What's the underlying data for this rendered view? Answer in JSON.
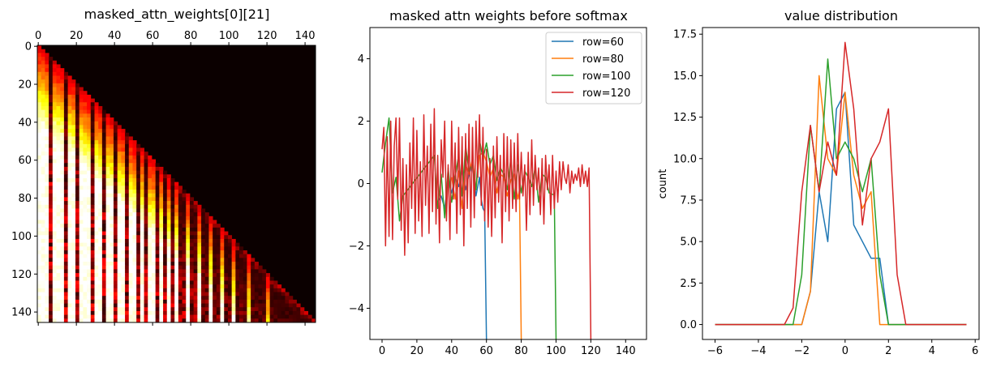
{
  "chart_data": [
    {
      "type": "heatmap",
      "title": "masked_attn_weights[0][21]",
      "x_ticks": [
        0,
        20,
        40,
        60,
        80,
        100,
        120,
        140
      ],
      "y_ticks": [
        0,
        20,
        40,
        60,
        80,
        100,
        120,
        140
      ],
      "xlim": [
        -0.5,
        145.5
      ],
      "ylim": [
        145.5,
        -0.5
      ],
      "size": 146,
      "colormap": "hot",
      "masked": "upper triangle (above diagonal) is zero",
      "hot_columns": [
        0,
        2,
        3,
        5,
        8,
        11,
        13,
        16,
        19,
        22,
        24,
        27,
        30,
        33,
        36,
        39,
        42,
        45,
        48,
        51,
        55,
        58,
        61,
        64,
        69,
        73,
        78,
        84,
        90,
        96,
        103,
        111,
        120
      ]
    },
    {
      "type": "line",
      "title": "masked attn weights before softmax",
      "xlim": [
        -7,
        152
      ],
      "ylim": [
        -5,
        5
      ],
      "x_ticks": [
        0,
        20,
        40,
        60,
        80,
        100,
        120,
        140
      ],
      "y_ticks": [
        -4,
        -2,
        0,
        2,
        4
      ],
      "legend_position": "top-right",
      "series": [
        {
          "name": "row=60",
          "color": "#1f77b4",
          "x": [
            32,
            34,
            36,
            38,
            40,
            42,
            44,
            46,
            48,
            50,
            52,
            54,
            56,
            57,
            58,
            59,
            60
          ],
          "y": [
            -0.6,
            -0.4,
            -0.8,
            0.1,
            -0.3,
            0.2,
            -0.1,
            0.4,
            -0.2,
            0.3,
            0.6,
            -0.4,
            0.2,
            -0.5,
            -0.8,
            -0.9,
            -5
          ]
        },
        {
          "name": "row=80",
          "color": "#ff7f0e",
          "x": [
            40,
            42,
            44,
            46,
            48,
            50,
            52,
            54,
            56,
            58,
            60,
            62,
            64,
            66,
            68,
            70,
            72,
            74,
            76,
            78,
            79,
            80
          ],
          "y": [
            0.2,
            -0.5,
            0.4,
            -0.8,
            0.6,
            0.3,
            0.8,
            -0.2,
            0.9,
            1.0,
            0.7,
            0.2,
            0.5,
            -0.3,
            0.3,
            0.2,
            -0.4,
            0.1,
            0.3,
            -0.5,
            -0.2,
            -5
          ]
        },
        {
          "name": "row=100",
          "color": "#2ca02c",
          "x": [
            0,
            2,
            4,
            6,
            8,
            10,
            12,
            30,
            32,
            34,
            36,
            38,
            40,
            42,
            44,
            46,
            48,
            50,
            52,
            54,
            56,
            58,
            60,
            62,
            64,
            66,
            68,
            70,
            72,
            74,
            76,
            78,
            80,
            82,
            84,
            86,
            88,
            90,
            92,
            94,
            96,
            98,
            99,
            100
          ],
          "y": [
            0.35,
            1.3,
            2.1,
            -0.3,
            0.2,
            -1.2,
            -0.4,
            0.9,
            -0.8,
            0.3,
            -1.1,
            0.5,
            -0.6,
            0.2,
            0.9,
            -0.4,
            1.2,
            0.4,
            0.6,
            -0.2,
            1.4,
            0.8,
            1.3,
            0.6,
            0.9,
            0.1,
            0.5,
            0.3,
            -0.2,
            0.8,
            -0.5,
            0.6,
            -0.3,
            0.4,
            0.2,
            -0.1,
            0.5,
            -0.6,
            0.3,
            0.2,
            -0.3,
            -0.35,
            -0.35,
            -5
          ]
        },
        {
          "name": "row=120",
          "color": "#d62728",
          "x": [
            0,
            1,
            2,
            3,
            4,
            5,
            6,
            7,
            8,
            9,
            10,
            11,
            12,
            13,
            14,
            15,
            16,
            17,
            18,
            19,
            20,
            21,
            22,
            23,
            24,
            25,
            26,
            27,
            28,
            29,
            30,
            31,
            32,
            33,
            34,
            35,
            36,
            37,
            38,
            39,
            40,
            41,
            42,
            43,
            44,
            45,
            46,
            47,
            48,
            49,
            50,
            51,
            52,
            53,
            54,
            55,
            56,
            57,
            58,
            59,
            60,
            61,
            62,
            63,
            64,
            65,
            66,
            67,
            68,
            69,
            70,
            71,
            72,
            73,
            74,
            75,
            76,
            77,
            78,
            79,
            80,
            81,
            82,
            83,
            84,
            85,
            86,
            87,
            88,
            89,
            90,
            91,
            92,
            93,
            94,
            95,
            96,
            97,
            98,
            99,
            100,
            101,
            102,
            103,
            104,
            105,
            106,
            107,
            108,
            109,
            110,
            111,
            112,
            113,
            114,
            115,
            116,
            117,
            118,
            119,
            120
          ],
          "y": [
            1.1,
            1.8,
            -2.0,
            1.5,
            -1.7,
            2.0,
            -1.8,
            1.2,
            2.1,
            -0.5,
            2.1,
            -1.5,
            0.8,
            -2.3,
            0.6,
            -1.9,
            1.3,
            -0.8,
            2.1,
            -1.6,
            1.7,
            -1.2,
            0.7,
            -1.7,
            2.2,
            -0.7,
            1.2,
            -1.6,
            1.9,
            -0.9,
            2.4,
            -1.3,
            0.9,
            -1.9,
            1.4,
            0.2,
            2.0,
            -1.2,
            0.6,
            -1.8,
            2.0,
            -0.5,
            1.3,
            -1.6,
            1.8,
            -1.0,
            1.5,
            -2.0,
            1.6,
            -0.8,
            1.9,
            -1.4,
            1.8,
            -1.1,
            2.0,
            0.2,
            2.2,
            -0.7,
            1.8,
            -1.2,
            1.1,
            -1.4,
            0.8,
            -1.7,
            1.2,
            -1.1,
            1.5,
            -0.6,
            0.9,
            -1.9,
            1.6,
            -0.9,
            1.5,
            -1.2,
            1.4,
            -0.8,
            1.3,
            -0.9,
            1.6,
            -0.5,
            1.0,
            -0.4,
            0.6,
            -1.5,
            1.0,
            -1.0,
            1.4,
            -0.7,
            0.9,
            -0.2,
            0.5,
            -1.0,
            0.8,
            -1.3,
            0.9,
            -0.2,
            0.6,
            -1.0,
            0.9,
            -0.8,
            0.4,
            -0.6,
            0.7,
            -0.2,
            0.7,
            0.2,
            0.0,
            0.6,
            -0.3,
            0.4,
            0.0,
            0.3,
            0.1,
            0.5,
            -0.1,
            0.6,
            0.0,
            0.4,
            -0.1,
            0.5,
            -5
          ]
        }
      ]
    },
    {
      "type": "line",
      "title": "value distribution",
      "ylabel": "count",
      "xlim": [
        -6.58,
        6.18
      ],
      "ylim": [
        -0.9,
        17.9
      ],
      "x_ticks": [
        -6,
        -4,
        -2,
        0,
        2,
        4,
        6
      ],
      "y_ticks": [
        "0.0",
        "2.5",
        "5.0",
        "7.5",
        "10.0",
        "12.5",
        "15.0",
        "17.5"
      ],
      "x": [
        -6.0,
        -5.6,
        -5.2,
        -4.8,
        -4.4,
        -4.0,
        -3.6,
        -3.2,
        -2.8,
        -2.4,
        -2.0,
        -1.6,
        -1.2,
        -0.8,
        -0.4,
        0.0,
        0.4,
        0.8,
        1.2,
        1.6,
        2.0,
        2.4,
        2.8,
        3.2,
        3.6,
        4.0,
        4.4,
        4.8,
        5.2,
        5.6
      ],
      "series": [
        {
          "name": "row=60",
          "color": "#1f77b4",
          "y": [
            0,
            0,
            0,
            0,
            0,
            0,
            0,
            0,
            0,
            0,
            0,
            2,
            8,
            5,
            13,
            14,
            6,
            5,
            4,
            4,
            0,
            0,
            0,
            0,
            0,
            0,
            0,
            0,
            0,
            0
          ]
        },
        {
          "name": "row=80",
          "color": "#ff7f0e",
          "y": [
            0,
            0,
            0,
            0,
            0,
            0,
            0,
            0,
            0,
            0,
            0,
            2,
            15,
            10,
            9,
            14,
            9,
            7,
            8,
            0,
            0,
            0,
            0,
            0,
            0,
            0,
            0,
            0,
            0,
            0
          ]
        },
        {
          "name": "row=100",
          "color": "#2ca02c",
          "y": [
            0,
            0,
            0,
            0,
            0,
            0,
            0,
            0,
            0,
            0,
            3,
            12,
            8,
            16,
            10,
            11,
            10,
            8,
            10,
            3,
            0,
            0,
            0,
            0,
            0,
            0,
            0,
            0,
            0,
            0
          ]
        },
        {
          "name": "row=120",
          "color": "#d62728",
          "y": [
            0,
            0,
            0,
            0,
            0,
            0,
            0,
            0,
            0,
            1,
            8,
            12,
            8,
            11,
            9,
            17,
            13,
            6,
            10,
            11,
            13,
            3,
            0,
            0,
            0,
            0,
            0,
            0,
            0,
            0
          ]
        }
      ]
    }
  ]
}
